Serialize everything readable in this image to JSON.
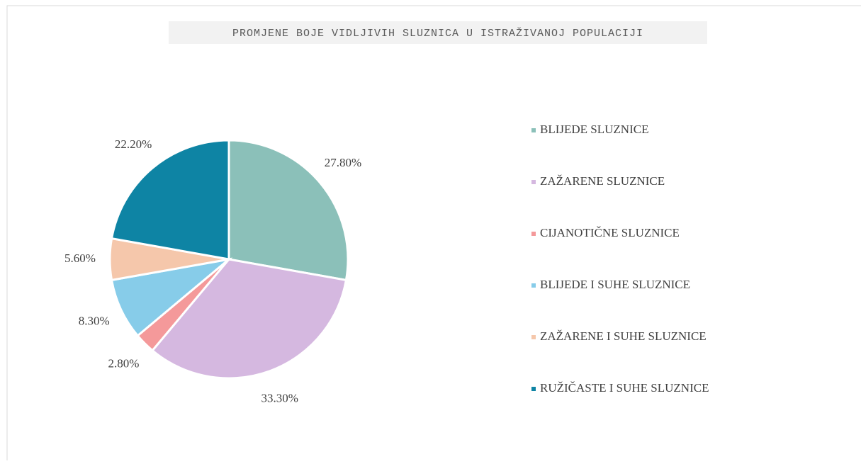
{
  "chart_data": {
    "type": "pie",
    "title": "PROMJENE BOJE VIDLJIVIH SLUZNICA U ISTRAŽIVANOJ POPULACIJI",
    "categories": [
      "BLIJEDE SLUZNICE",
      "ZAŽARENE SLUZNICE",
      "CIJANOTIČNE SLUZNICE",
      "BLIJEDE I SUHE SLUZNICE",
      "ZAŽARENE I SUHE SLUZNICE",
      "RUŽIČASTE I SUHE SLUZNICE"
    ],
    "values": [
      27.8,
      33.3,
      2.8,
      8.3,
      5.6,
      22.2
    ],
    "value_labels": [
      "27.80%",
      "33.30%",
      "2.80%",
      "8.30%",
      "5.60%",
      "22.20%"
    ],
    "colors": [
      "#8bc0b9",
      "#d5b8e0",
      "#f4999a",
      "#87cce9",
      "#f5c7ab",
      "#0e84a4"
    ],
    "legend": "right"
  }
}
